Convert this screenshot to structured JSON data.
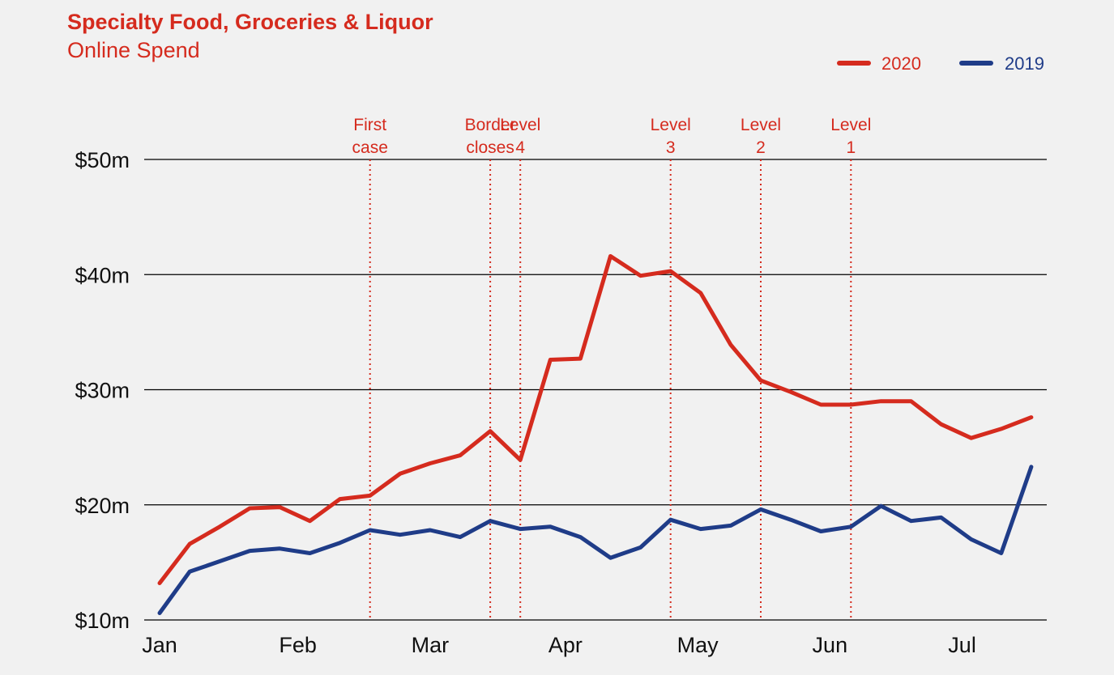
{
  "header": {
    "title": "Specialty Food, Groceries & Liquor",
    "subtitle": "Online Spend"
  },
  "chart_data": {
    "type": "line",
    "title": "Specialty Food, Groceries & Liquor",
    "subtitle": "Online Spend",
    "xlabel": "",
    "ylabel": "",
    "ylim": [
      10,
      50
    ],
    "y_ticks": [
      {
        "value": 50,
        "label": "$50m"
      },
      {
        "value": 40,
        "label": "$40m"
      },
      {
        "value": 30,
        "label": "$30m"
      },
      {
        "value": 20,
        "label": "$20m"
      },
      {
        "value": 10,
        "label": "$10m"
      }
    ],
    "x_tick_labels": [
      "Jan",
      "Feb",
      "Mar",
      "Apr",
      "May",
      "Jun",
      "Jul"
    ],
    "x_tick_positions": [
      0,
      4.6,
      9,
      13.5,
      17.9,
      22.3,
      26.7
    ],
    "x_period_count": 29,
    "grid": true,
    "legend_position": "top-right",
    "series": [
      {
        "name": "2020",
        "color": "#d52b1e",
        "values": [
          13.2,
          16.6,
          18.1,
          19.7,
          19.8,
          18.6,
          20.5,
          20.8,
          22.7,
          23.6,
          24.3,
          26.4,
          23.9,
          32.6,
          32.7,
          41.6,
          39.9,
          40.3,
          38.4,
          33.9,
          30.8,
          29.8,
          28.7,
          28.7,
          29.0,
          29.0,
          27.0,
          25.8,
          26.6,
          27.6
        ]
      },
      {
        "name": "2019",
        "color": "#1f3c88",
        "values": [
          10.6,
          14.2,
          15.1,
          16.0,
          16.2,
          15.8,
          16.7,
          17.8,
          17.4,
          17.8,
          17.2,
          18.6,
          17.9,
          18.1,
          17.2,
          15.4,
          16.3,
          18.7,
          17.9,
          18.2,
          19.6,
          18.7,
          17.7,
          18.1,
          19.9,
          18.6,
          18.9,
          17.0,
          15.8,
          23.3
        ]
      }
    ],
    "annotations": [
      {
        "label": [
          "First",
          "case"
        ],
        "x": 7
      },
      {
        "label": [
          "Border",
          "closes"
        ],
        "x": 11
      },
      {
        "label": [
          "Level",
          "4"
        ],
        "x": 12
      },
      {
        "label": [
          "Level",
          "3"
        ],
        "x": 17
      },
      {
        "label": [
          "Level",
          "2"
        ],
        "x": 20
      },
      {
        "label": [
          "Level",
          "1"
        ],
        "x": 23
      }
    ],
    "annotation_color": "#d52b1e"
  }
}
